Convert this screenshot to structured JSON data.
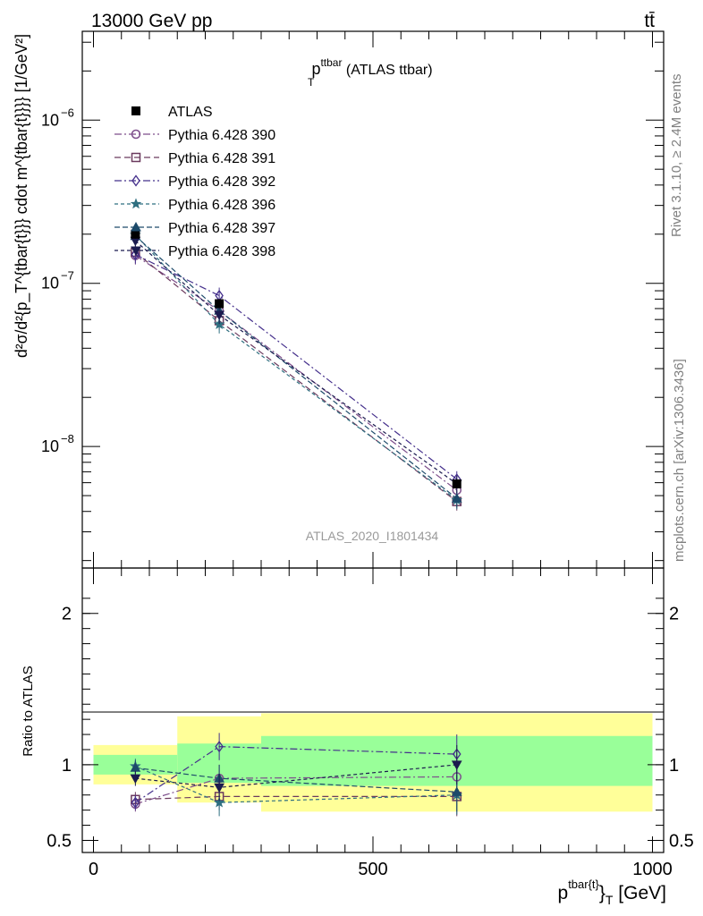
{
  "header": {
    "beam": "13000 GeV pp",
    "process": "tt̄",
    "rivet": "Rivet 3.1.10, ≥ 2.4M events",
    "site": "mcplots.cern.ch [arXiv:1306.3436]",
    "analysis": "ATLAS_2020_I1801434"
  },
  "chart_data": [
    {
      "type": "line",
      "title_main": "p",
      "title_sup": "ttbar",
      "title_sub": "T",
      "title_tail": " (ATLAS ttbar)",
      "ylabel": "d²σ/d²{p_T^{tbar{t}}} cdot m^{tbar{t}}}} [1/GeV²]",
      "ylog": true,
      "ylim": [
        1.8e-09,
        3.5e-06
      ],
      "yticks": [
        {
          "value": 1e-08,
          "label": "10",
          "exp": "−8"
        },
        {
          "value": 1e-07,
          "label": "10",
          "exp": "−7"
        },
        {
          "value": 1e-06,
          "label": "10",
          "exp": "−6"
        }
      ],
      "x": [
        75,
        225,
        650
      ],
      "xlim": [
        -20,
        1020
      ],
      "data": {
        "name": "ATLAS",
        "values": [
          2e-07,
          7.5e-08,
          5.9e-09
        ]
      },
      "series": [
        {
          "name": "Pythia 6.428 390",
          "color": "#7d4e8b",
          "marker": "circle",
          "dash": "8,3,2,3",
          "values": [
            1.48e-07,
            6.8e-08,
            5.4e-09
          ]
        },
        {
          "name": "Pythia 6.428 391",
          "color": "#6b3a5e",
          "marker": "square",
          "dash": "7,4",
          "values": [
            1.55e-07,
            5.9e-08,
            4.6e-09
          ]
        },
        {
          "name": "Pythia 6.428 392",
          "color": "#45308c",
          "marker": "diamond",
          "dash": "8,3,2,3",
          "values": [
            1.5e-07,
            8.4e-08,
            6.3e-09
          ]
        },
        {
          "name": "Pythia 6.428 396",
          "color": "#2f6f80",
          "marker": "star",
          "dash": "4,3",
          "values": [
            1.98e-07,
            5.6e-08,
            4.7e-09
          ]
        },
        {
          "name": "Pythia 6.428 397",
          "color": "#1d4a6a",
          "marker": "triangle-up",
          "dash": "6,3",
          "values": [
            1.95e-07,
            6.8e-08,
            4.8e-09
          ]
        },
        {
          "name": "Pythia 6.428 398",
          "color": "#1b1b4f",
          "marker": "triangle-down",
          "dash": "4,3",
          "values": [
            1.82e-07,
            6.4e-08,
            5.9e-09
          ]
        }
      ]
    },
    {
      "type": "line",
      "ylabel": "Ratio to ATLAS",
      "ylim": [
        0.42,
        2.3
      ],
      "yticks": [
        0.5,
        1,
        2
      ],
      "ytick_labels": [
        "0.5",
        "1",
        "2"
      ],
      "xlabel_main": "p",
      "xlabel_sup": "tbar{t}",
      "xlabel_close": "}",
      "xlabel_sub": "T",
      "xlabel_tail": " [GeV]",
      "xticks": [
        0,
        500,
        1000
      ],
      "xtick_labels": [
        "0",
        "500",
        "1000"
      ],
      "bins": [
        {
          "lo": 0,
          "hi": 150,
          "green": [
            0.935,
            1.065
          ],
          "yellow": [
            0.87,
            1.13
          ]
        },
        {
          "lo": 150,
          "hi": 300,
          "green": [
            0.88,
            1.14
          ],
          "yellow": [
            0.75,
            1.32
          ]
        },
        {
          "lo": 300,
          "hi": 1000,
          "green": [
            0.86,
            1.19
          ],
          "yellow": [
            0.69,
            1.34
          ]
        }
      ],
      "series_ratios": [
        [
          0.74,
          0.91,
          0.92
        ],
        [
          0.77,
          0.79,
          0.79
        ],
        [
          0.75,
          1.12,
          1.07
        ],
        [
          0.99,
          0.75,
          0.8
        ],
        [
          0.98,
          0.91,
          0.82
        ],
        [
          0.91,
          0.85,
          1.0
        ]
      ]
    }
  ]
}
